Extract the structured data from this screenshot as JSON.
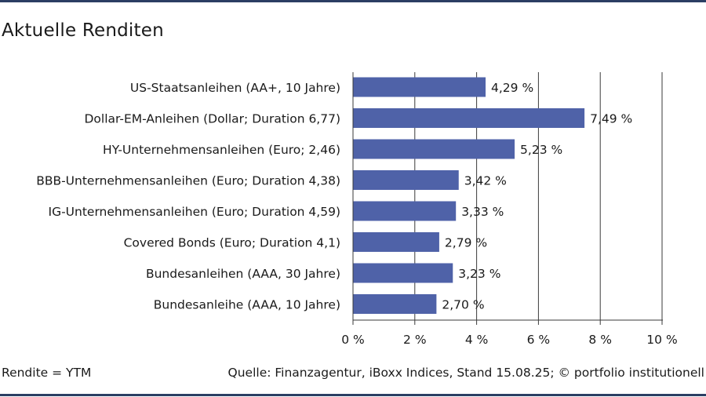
{
  "title": "Aktuelle Renditen",
  "footer": {
    "left": "Rendite = YTM",
    "right": "Quelle: Finanzagentur, iBoxx Indices, Stand 15.08.25; © portfolio institutionell"
  },
  "colors": {
    "bar": "#4f62a8",
    "rule": "#2b3e63",
    "grid": "#3a3a3a"
  },
  "chart_data": {
    "type": "bar",
    "orientation": "horizontal",
    "title": "Aktuelle Renditen",
    "categories": [
      "US-Staatsanleihen (AA+, 10 Jahre)",
      "Dollar-EM-Anleihen (Dollar; Duration 6,77)",
      "HY-Unternehmensanleihen (Euro; 2,46)",
      "BBB-Unternehmensanleihen (Euro; Duration 4,38)",
      "IG-Unternehmensanleihen (Euro; Duration 4,59)",
      "Covered Bonds (Euro; Duration 4,1)",
      "Bundesanleihen (AAA, 30 Jahre)",
      "Bundesanleihe (AAA, 10 Jahre)"
    ],
    "values": [
      4.29,
      7.49,
      5.23,
      3.42,
      3.33,
      2.79,
      3.23,
      2.7
    ],
    "value_labels": [
      "4,29 %",
      "7,49 %",
      "5,23 %",
      "3,42 %",
      "3,33 %",
      "2,79 %",
      "3,23 %",
      "2,70 %"
    ],
    "xlim": [
      0,
      10
    ],
    "xticks": [
      0,
      2,
      4,
      6,
      8,
      10
    ],
    "xtick_labels": [
      "0 %",
      "2 %",
      "4 %",
      "6 %",
      "8 %",
      "10 %"
    ],
    "grid": true,
    "legend": "none"
  }
}
